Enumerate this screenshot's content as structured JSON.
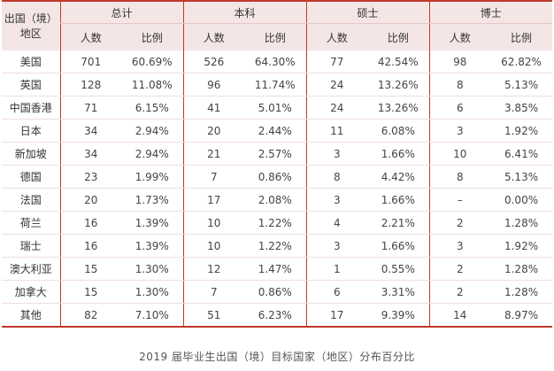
{
  "table": {
    "region_header": "出国（境）地区",
    "groups": [
      "总计",
      "本科",
      "硕士",
      "博士"
    ],
    "sub_headers": {
      "count": "人数",
      "ratio": "比例"
    },
    "rows": [
      {
        "region": "美国",
        "values": [
          "701",
          "60.69%",
          "526",
          "64.30%",
          "77",
          "42.54%",
          "98",
          "62.82%"
        ]
      },
      {
        "region": "英国",
        "values": [
          "128",
          "11.08%",
          "96",
          "11.74%",
          "24",
          "13.26%",
          "8",
          "5.13%"
        ]
      },
      {
        "region": "中国香港",
        "values": [
          "71",
          "6.15%",
          "41",
          "5.01%",
          "24",
          "13.26%",
          "6",
          "3.85%"
        ]
      },
      {
        "region": "日本",
        "values": [
          "34",
          "2.94%",
          "20",
          "2.44%",
          "11",
          "6.08%",
          "3",
          "1.92%"
        ]
      },
      {
        "region": "新加坡",
        "values": [
          "34",
          "2.94%",
          "21",
          "2.57%",
          "3",
          "1.66%",
          "10",
          "6.41%"
        ]
      },
      {
        "region": "德国",
        "values": [
          "23",
          "1.99%",
          "7",
          "0.86%",
          "8",
          "4.42%",
          "8",
          "5.13%"
        ]
      },
      {
        "region": "法国",
        "values": [
          "20",
          "1.73%",
          "17",
          "2.08%",
          "3",
          "1.66%",
          "–",
          "0.00%"
        ]
      },
      {
        "region": "荷兰",
        "values": [
          "16",
          "1.39%",
          "10",
          "1.22%",
          "4",
          "2.21%",
          "2",
          "1.28%"
        ]
      },
      {
        "region": "瑞士",
        "values": [
          "16",
          "1.39%",
          "10",
          "1.22%",
          "3",
          "1.66%",
          "3",
          "1.92%"
        ]
      },
      {
        "region": "澳大利亚",
        "values": [
          "15",
          "1.30%",
          "12",
          "1.47%",
          "1",
          "0.55%",
          "2",
          "1.28%"
        ]
      },
      {
        "region": "加拿大",
        "values": [
          "15",
          "1.30%",
          "7",
          "0.86%",
          "6",
          "3.31%",
          "2",
          "1.28%"
        ]
      },
      {
        "region": "其他",
        "values": [
          "82",
          "7.10%",
          "51",
          "6.23%",
          "17",
          "9.39%",
          "14",
          "8.97%"
        ]
      }
    ]
  },
  "caption": "2019 届毕业生出国（境）目标国家（地区）分布百分比",
  "colors": {
    "border": "#c0392b",
    "header_bg": "#f5e6e6",
    "row_divider": "#f0dede"
  }
}
